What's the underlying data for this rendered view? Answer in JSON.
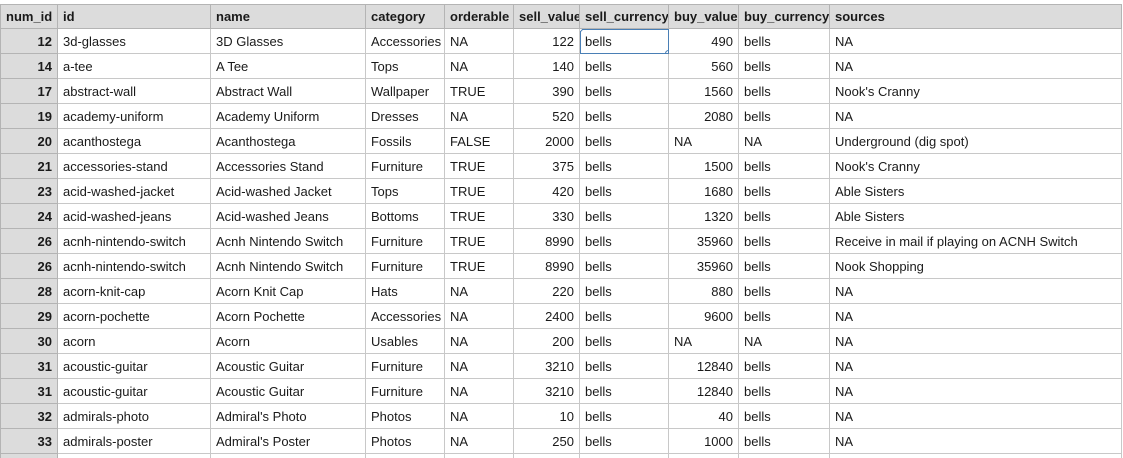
{
  "columns": [
    "num_id",
    "id",
    "name",
    "category",
    "orderable",
    "sell_value",
    "sell_currency",
    "buy_value",
    "buy_currency",
    "sources"
  ],
  "rows": [
    [
      "12",
      "3d-glasses",
      "3D Glasses",
      "Accessories",
      "NA",
      "122",
      "bells",
      "490",
      "bells",
      "NA"
    ],
    [
      "14",
      "a-tee",
      "A Tee",
      "Tops",
      "NA",
      "140",
      "bells",
      "560",
      "bells",
      "NA"
    ],
    [
      "17",
      "abstract-wall",
      "Abstract Wall",
      "Wallpaper",
      "TRUE",
      "390",
      "bells",
      "1560",
      "bells",
      "Nook's Cranny"
    ],
    [
      "19",
      "academy-uniform",
      "Academy Uniform",
      "Dresses",
      "NA",
      "520",
      "bells",
      "2080",
      "bells",
      "NA"
    ],
    [
      "20",
      "acanthostega",
      "Acanthostega",
      "Fossils",
      "FALSE",
      "2000",
      "bells",
      "NA",
      "NA",
      "Underground (dig spot)"
    ],
    [
      "21",
      "accessories-stand",
      "Accessories Stand",
      "Furniture",
      "TRUE",
      "375",
      "bells",
      "1500",
      "bells",
      "Nook's Cranny"
    ],
    [
      "23",
      "acid-washed-jacket",
      "Acid-washed Jacket",
      "Tops",
      "TRUE",
      "420",
      "bells",
      "1680",
      "bells",
      "Able Sisters"
    ],
    [
      "24",
      "acid-washed-jeans",
      "Acid-washed Jeans",
      "Bottoms",
      "TRUE",
      "330",
      "bells",
      "1320",
      "bells",
      "Able Sisters"
    ],
    [
      "26",
      "acnh-nintendo-switch",
      "Acnh Nintendo Switch",
      "Furniture",
      "TRUE",
      "8990",
      "bells",
      "35960",
      "bells",
      "Receive in mail if playing on ACNH Switch"
    ],
    [
      "26",
      "acnh-nintendo-switch",
      "Acnh Nintendo Switch",
      "Furniture",
      "TRUE",
      "8990",
      "bells",
      "35960",
      "bells",
      "Nook Shopping"
    ],
    [
      "28",
      "acorn-knit-cap",
      "Acorn Knit Cap",
      "Hats",
      "NA",
      "220",
      "bells",
      "880",
      "bells",
      "NA"
    ],
    [
      "29",
      "acorn-pochette",
      "Acorn Pochette",
      "Accessories",
      "NA",
      "2400",
      "bells",
      "9600",
      "bells",
      "NA"
    ],
    [
      "30",
      "acorn",
      "Acorn",
      "Usables",
      "NA",
      "200",
      "bells",
      "NA",
      "NA",
      "NA"
    ],
    [
      "31",
      "acoustic-guitar",
      "Acoustic Guitar",
      "Furniture",
      "NA",
      "3210",
      "bells",
      "12840",
      "bells",
      "NA"
    ],
    [
      "31",
      "acoustic-guitar",
      "Acoustic Guitar",
      "Furniture",
      "NA",
      "3210",
      "bells",
      "12840",
      "bells",
      "NA"
    ],
    [
      "32",
      "admirals-photo",
      "Admiral's Photo",
      "Photos",
      "NA",
      "10",
      "bells",
      "40",
      "bells",
      "NA"
    ],
    [
      "33",
      "admirals-poster",
      "Admiral's Poster",
      "Photos",
      "NA",
      "250",
      "bells",
      "1000",
      "bells",
      "NA"
    ]
  ],
  "selected_cell": {
    "row": 0,
    "col": 6
  },
  "colors": {
    "header_bg": "#dcdcdc",
    "grid": "#c8c8c8",
    "selection": "#4a7fb5"
  }
}
